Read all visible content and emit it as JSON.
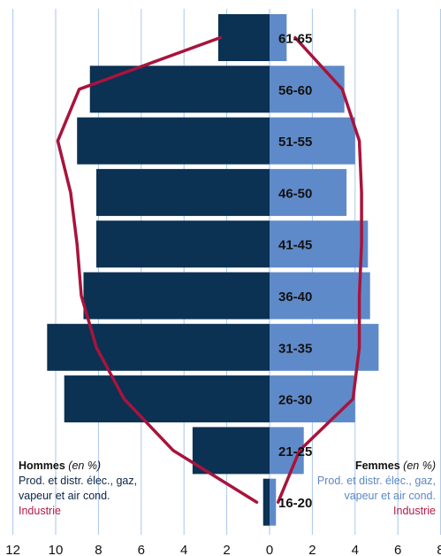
{
  "chart_data": {
    "type": "bar",
    "orientation": "horizontal-pyramid",
    "categories": [
      "16-20",
      "21-25",
      "26-30",
      "31-35",
      "36-40",
      "41-45",
      "46-50",
      "51-55",
      "56-60",
      "61-65"
    ],
    "series": [
      {
        "name": "Prod. et distr. élec., gaz, vapeur et air cond.",
        "side": "Hommes",
        "values": [
          0.3,
          3.6,
          9.6,
          10.4,
          8.7,
          8.1,
          8.1,
          9.0,
          8.4,
          2.4
        ]
      },
      {
        "name": "Prod. et distr. élec., gaz, vapeur et air cond.",
        "side": "Femmes",
        "values": [
          0.3,
          1.6,
          4.0,
          5.1,
          4.7,
          4.6,
          3.6,
          4.0,
          3.5,
          0.8
        ]
      },
      {
        "name": "Industrie",
        "side": "Hommes",
        "type": "line",
        "values": [
          0.6,
          4.5,
          6.8,
          8.1,
          8.8,
          9.0,
          9.3,
          9.9,
          8.9,
          2.3
        ]
      },
      {
        "name": "Industrie",
        "side": "Femmes",
        "type": "line",
        "values": [
          0.4,
          1.4,
          3.9,
          4.2,
          4.2,
          4.3,
          4.3,
          4.2,
          3.4,
          1.2
        ]
      }
    ],
    "xticks": [
      "12",
      "10",
      "8",
      "6",
      "4",
      "2",
      "0",
      "2",
      "4",
      "6",
      "8"
    ],
    "xlim": [
      -12,
      8
    ],
    "grid": true,
    "colors": {
      "hommes": "#0b3153",
      "femmes": "#5f8ac9",
      "industrie": "#a8143c",
      "grid": "#a9c6ea"
    }
  },
  "legend_left": {
    "title": "Hommes",
    "unit": "(en %)",
    "series_line1": "Prod. et distr. élec., gaz,",
    "series_line2": "vapeur et air cond.",
    "industry": "Industrie"
  },
  "legend_right": {
    "title": "Femmes",
    "unit": "(en %)",
    "series_line1": "Prod. et distr. élec., gaz,",
    "series_line2": "vapeur et air cond.",
    "industry": "Industrie"
  }
}
